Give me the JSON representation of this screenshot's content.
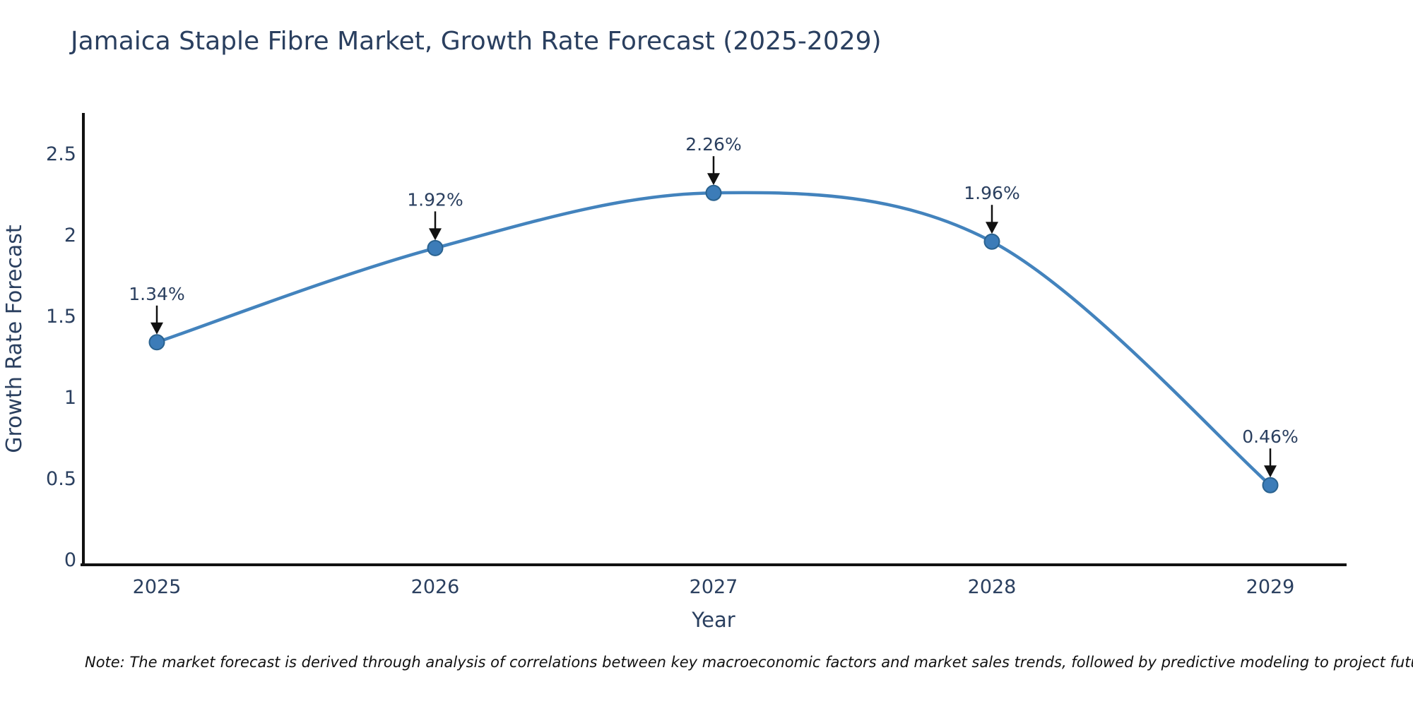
{
  "title": "Jamaica Staple Fibre Market, Growth Rate Forecast (2025-2029)",
  "note": "Note: The market forecast is derived through analysis of correlations between key macroeconomic factors and market sales trends, followed by predictive modeling to project future sales",
  "chart_data": {
    "type": "line",
    "title": "Jamaica Staple Fibre Market, Growth Rate Forecast (2025-2029)",
    "x": [
      "2025",
      "2026",
      "2027",
      "2028",
      "2029"
    ],
    "series": [
      {
        "name": "Growth Rate Forecast",
        "values": [
          1.34,
          1.92,
          2.26,
          1.96,
          0.46
        ]
      }
    ],
    "point_labels": [
      "1.34%",
      "1.92%",
      "2.26%",
      "1.96%",
      "0.46%"
    ],
    "xlabel": "Year",
    "ylabel": "Growth Rate Forecast",
    "ylim": [
      0,
      2.7
    ],
    "yticks": [
      0,
      0.5,
      1,
      1.5,
      2,
      2.5
    ],
    "grid": false,
    "legend_position": "none",
    "line_shape": "spline",
    "colors": {
      "line": "#4383bd",
      "marker_fill": "#3c7cb8",
      "marker_edge": "#2a628f",
      "axis": "#111111",
      "text": "#2a3f5f",
      "annotation_arrow": "#111111",
      "note_text": "#111111",
      "background": "#ffffff"
    }
  }
}
